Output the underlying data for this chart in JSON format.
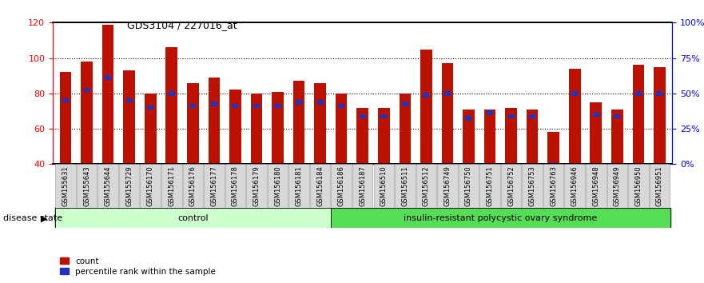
{
  "title": "GDS3104 / 227016_at",
  "samples": [
    "GSM155631",
    "GSM155643",
    "GSM155644",
    "GSM155729",
    "GSM156170",
    "GSM156171",
    "GSM156176",
    "GSM156177",
    "GSM156178",
    "GSM156179",
    "GSM156180",
    "GSM156181",
    "GSM156184",
    "GSM156186",
    "GSM156187",
    "GSM156510",
    "GSM156511",
    "GSM156512",
    "GSM156749",
    "GSM156750",
    "GSM156751",
    "GSM156752",
    "GSM156753",
    "GSM156763",
    "GSM156946",
    "GSM156948",
    "GSM156949",
    "GSM156950",
    "GSM156951"
  ],
  "red_values": [
    92,
    98,
    119,
    93,
    80,
    106,
    86,
    89,
    82,
    80,
    81,
    87,
    86,
    80,
    72,
    72,
    80,
    105,
    97,
    71,
    71,
    72,
    71,
    58,
    94,
    75,
    71,
    96,
    95
  ],
  "blue_values": [
    76,
    82,
    89,
    76,
    72,
    80,
    73,
    74,
    73,
    73,
    73,
    75,
    75,
    73,
    67,
    67,
    74,
    79,
    80,
    66,
    69,
    67,
    67,
    40,
    80,
    68,
    67,
    80,
    80
  ],
  "control_count": 13,
  "disease_count": 16,
  "group_labels": [
    "control",
    "insulin-resistant polycystic ovary syndrome"
  ],
  "ylim": [
    40,
    120
  ],
  "yticks": [
    40,
    60,
    80,
    100,
    120
  ],
  "right_tick_positions": [
    40,
    60,
    80,
    100,
    120
  ],
  "right_tick_labels": [
    "0%",
    "25%",
    "50%",
    "75%",
    "100%"
  ],
  "bar_color": "#BB1100",
  "blue_color": "#2233BB",
  "bar_width": 0.55,
  "control_bg": "#CCFFCC",
  "disease_bg": "#44CC44",
  "legend_red": "count",
  "legend_blue": "percentile rank within the sample",
  "disease_state_label": "disease state"
}
